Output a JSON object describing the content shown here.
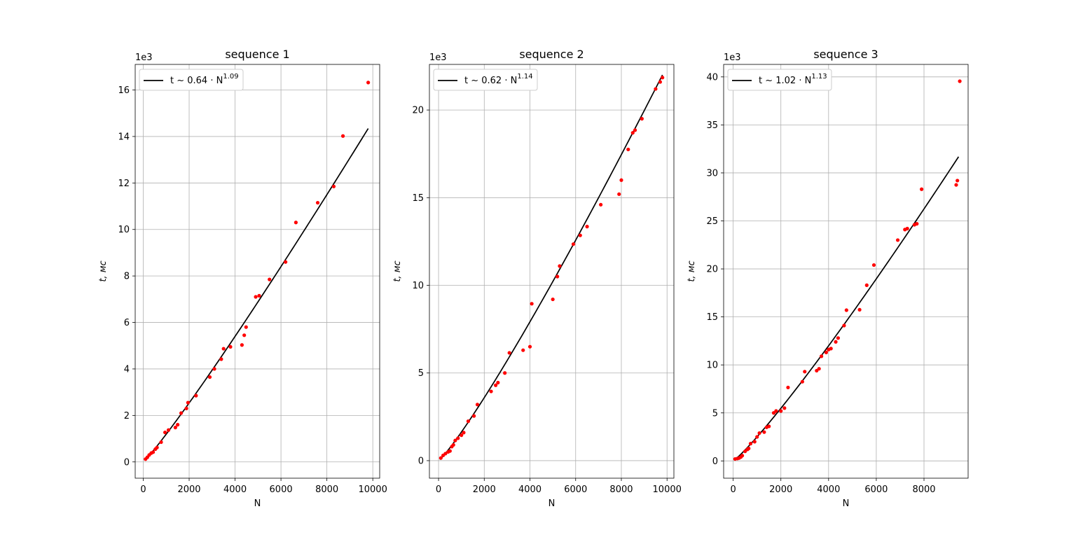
{
  "chart_data": [
    {
      "type": "scatter",
      "title": "sequence 1",
      "xlabel": "N",
      "ylabel": "t, мс",
      "offset_label": "1e3",
      "xlim": [
        -350,
        10300
      ],
      "ylim": [
        -0.7,
        17.1
      ],
      "xticks": [
        0,
        2000,
        4000,
        6000,
        8000,
        10000
      ],
      "xtick_labels": [
        "0",
        "2000",
        "4000",
        "6000",
        "8000",
        "10000"
      ],
      "yticks": [
        0,
        2,
        4,
        6,
        8,
        10,
        12,
        14,
        16
      ],
      "ytick_labels": [
        "0",
        "2",
        "4",
        "6",
        "8",
        "10",
        "12",
        "14",
        "16"
      ],
      "grid": true,
      "legend": {
        "placement": "upper-left",
        "label_prefix": "t ~ 0.64 · N",
        "label_exponent": "1.09"
      },
      "fit": {
        "a": 0.64,
        "b": 1.09,
        "x_start": 80,
        "x_end": 9800
      },
      "points": [
        [
          100,
          0.12
        ],
        [
          180,
          0.2
        ],
        [
          260,
          0.3
        ],
        [
          350,
          0.38
        ],
        [
          430,
          0.42
        ],
        [
          530,
          0.55
        ],
        [
          600,
          0.62
        ],
        [
          780,
          0.85
        ],
        [
          950,
          1.27
        ],
        [
          1100,
          1.37
        ],
        [
          1400,
          1.48
        ],
        [
          1500,
          1.6
        ],
        [
          1650,
          2.1
        ],
        [
          1880,
          2.3
        ],
        [
          1950,
          2.55
        ],
        [
          2300,
          2.85
        ],
        [
          2900,
          3.65
        ],
        [
          3100,
          4.0
        ],
        [
          3400,
          4.42
        ],
        [
          3500,
          4.87
        ],
        [
          3800,
          4.95
        ],
        [
          4300,
          5.03
        ],
        [
          4400,
          5.45
        ],
        [
          4480,
          5.8
        ],
        [
          4900,
          7.1
        ],
        [
          5050,
          7.15
        ],
        [
          5500,
          7.85
        ],
        [
          6200,
          8.6
        ],
        [
          6650,
          10.3
        ],
        [
          7600,
          11.15
        ],
        [
          8300,
          11.85
        ],
        [
          8700,
          14.02
        ],
        [
          9800,
          16.32
        ]
      ]
    },
    {
      "type": "scatter",
      "title": "sequence 2",
      "xlabel": "N",
      "ylabel": "t, мс",
      "offset_label": "1e3",
      "xlim": [
        -400,
        10300
      ],
      "ylim": [
        -1.0,
        22.6
      ],
      "xticks": [
        0,
        2000,
        4000,
        6000,
        8000,
        10000
      ],
      "xtick_labels": [
        "0",
        "2000",
        "4000",
        "6000",
        "8000",
        "10000"
      ],
      "yticks": [
        0,
        5,
        10,
        15,
        20
      ],
      "ytick_labels": [
        "0",
        "5",
        "10",
        "15",
        "20"
      ],
      "grid": true,
      "legend": {
        "placement": "upper-left",
        "label_prefix": "t ~ 0.62 · N",
        "label_exponent": "1.14"
      },
      "fit": {
        "a": 0.62,
        "b": 1.14,
        "x_start": 60,
        "x_end": 9800
      },
      "points": [
        [
          100,
          0.15
        ],
        [
          200,
          0.3
        ],
        [
          300,
          0.4
        ],
        [
          420,
          0.5
        ],
        [
          500,
          0.55
        ],
        [
          580,
          0.8
        ],
        [
          650,
          0.9
        ],
        [
          730,
          1.15
        ],
        [
          850,
          1.28
        ],
        [
          1000,
          1.45
        ],
        [
          1100,
          1.6
        ],
        [
          1300,
          2.25
        ],
        [
          1550,
          2.55
        ],
        [
          1700,
          3.2
        ],
        [
          2300,
          3.95
        ],
        [
          2500,
          4.3
        ],
        [
          2600,
          4.45
        ],
        [
          2900,
          5.0
        ],
        [
          3100,
          6.15
        ],
        [
          3700,
          6.3
        ],
        [
          4000,
          6.5
        ],
        [
          4080,
          8.95
        ],
        [
          5000,
          9.2
        ],
        [
          5200,
          10.5
        ],
        [
          5300,
          11.1
        ],
        [
          5900,
          12.35
        ],
        [
          6200,
          12.85
        ],
        [
          6500,
          13.35
        ],
        [
          7100,
          14.6
        ],
        [
          7900,
          15.2
        ],
        [
          8000,
          16.0
        ],
        [
          8300,
          17.75
        ],
        [
          8500,
          18.7
        ],
        [
          8600,
          18.85
        ],
        [
          8900,
          19.5
        ],
        [
          9500,
          21.2
        ],
        [
          9700,
          21.6
        ],
        [
          9800,
          21.85
        ]
      ]
    },
    {
      "type": "scatter",
      "title": "sequence 3",
      "xlabel": "N",
      "ylabel": "t, мс",
      "offset_label": "1e3",
      "xlim": [
        -400,
        9850
      ],
      "ylim": [
        -1.8,
        41.3
      ],
      "xticks": [
        0,
        2000,
        4000,
        6000,
        8000
      ],
      "xtick_labels": [
        "0",
        "2000",
        "4000",
        "6000",
        "8000"
      ],
      "yticks": [
        0,
        5,
        10,
        15,
        20,
        25,
        30,
        35,
        40
      ],
      "ytick_labels": [
        "0",
        "5",
        "10",
        "15",
        "20",
        "25",
        "30",
        "35",
        "40"
      ],
      "grid": true,
      "legend": {
        "placement": "upper-left",
        "label_prefix": "t ~ 1.02 · N",
        "label_exponent": "1.13"
      },
      "fit": {
        "a": 1.02,
        "b": 1.13,
        "x_start": 60,
        "x_end": 9450
      },
      "points": [
        [
          80,
          0.2
        ],
        [
          180,
          0.25
        ],
        [
          250,
          0.3
        ],
        [
          320,
          0.4
        ],
        [
          380,
          0.55
        ],
        [
          500,
          1.0
        ],
        [
          600,
          1.2
        ],
        [
          650,
          1.3
        ],
        [
          730,
          1.8
        ],
        [
          900,
          2.0
        ],
        [
          1000,
          2.5
        ],
        [
          1100,
          2.9
        ],
        [
          1300,
          3.0
        ],
        [
          1400,
          3.5
        ],
        [
          1500,
          3.6
        ],
        [
          1700,
          5.0
        ],
        [
          1800,
          5.2
        ],
        [
          2000,
          5.2
        ],
        [
          2150,
          5.5
        ],
        [
          2300,
          7.65
        ],
        [
          2900,
          8.25
        ],
        [
          3000,
          9.3
        ],
        [
          3500,
          9.4
        ],
        [
          3600,
          9.6
        ],
        [
          3700,
          10.9
        ],
        [
          3900,
          11.3
        ],
        [
          4000,
          11.6
        ],
        [
          4100,
          11.7
        ],
        [
          4300,
          12.4
        ],
        [
          4400,
          12.8
        ],
        [
          4650,
          14.1
        ],
        [
          4750,
          15.7
        ],
        [
          5300,
          15.75
        ],
        [
          5600,
          18.3
        ],
        [
          5900,
          20.4
        ],
        [
          6900,
          23.0
        ],
        [
          7200,
          24.1
        ],
        [
          7300,
          24.2
        ],
        [
          7600,
          24.6
        ],
        [
          7700,
          24.7
        ],
        [
          7900,
          28.3
        ],
        [
          9350,
          28.75
        ],
        [
          9400,
          29.2
        ],
        [
          9500,
          39.55
        ]
      ]
    }
  ]
}
